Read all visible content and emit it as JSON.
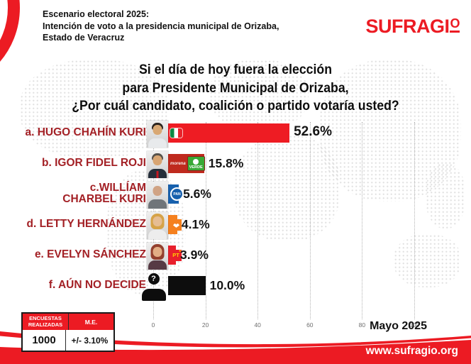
{
  "header": {
    "kicker_lines": [
      "Escenario electoral 2025:",
      "Intención de voto a la presidencia municipal de Orizaba,",
      "Estado de Veracruz"
    ],
    "brand": {
      "name": "SUFRAGIO",
      "main": "SUFRAGI",
      "o": "O"
    }
  },
  "title_lines": [
    "Si el día de hoy fuera la elección",
    "para Presidente Municipal de Orizaba,",
    "¿Por cuál candidato, coalición o partido votaría usted?"
  ],
  "chart_data": {
    "type": "bar",
    "orientation": "horizontal",
    "title": "Si el día de hoy fuera la elección para Presidente Municipal de Orizaba, ¿Por cuál candidato, coalición o partido votaría usted?",
    "unit": "%",
    "xlim": [
      0,
      100
    ],
    "axis_ticks": [
      0,
      20,
      40,
      60,
      80,
      100
    ],
    "grid": "dotted-vertical",
    "categories": [
      "a. HUGO CHAHÍN KURI",
      "b. IGOR FIDEL ROJI",
      "c.WILLÍAM CHARBEL KURI",
      "d. LETTY HERNÁNDEZ",
      "e. EVELYN SÁNCHEZ",
      "f. AÚN NO DECIDE"
    ],
    "values": [
      52.6,
      15.8,
      5.6,
      4.1,
      3.9,
      10.0
    ],
    "rows": [
      {
        "id": "a",
        "label_lines": [
          "a. HUGO CHAHÍN KURI"
        ],
        "value": 52.6,
        "value_label": "52.6%",
        "bar_color": "#ee1c23",
        "bar_display_pct": 52.2,
        "photo": "man-dark-hair",
        "logos": [
          {
            "name": "pri-logo",
            "text": ""
          }
        ]
      },
      {
        "id": "b",
        "label_lines": [
          "b. IGOR FIDEL ROJI"
        ],
        "value": 15.8,
        "value_label": "15.8%",
        "bar_color": "#bf2a1e",
        "bar_display_pct": 19.5,
        "photo": "man-suit-red-tie",
        "logos": [
          {
            "name": "morena-wordmark",
            "text": "morena"
          },
          {
            "name": "verde-logo",
            "text": "VERDE"
          }
        ]
      },
      {
        "id": "c",
        "label_lines": [
          "c.WILLÍAM",
          "CHARBEL KURI"
        ],
        "value": 5.6,
        "value_label": "5.6%",
        "bar_color": "#1760ad",
        "bar_display_pct": 9.8,
        "photo": "bald-man-suit",
        "logos": [
          {
            "name": "pan-logo",
            "text": "PAN"
          }
        ]
      },
      {
        "id": "d",
        "label_lines": [
          "d. LETTY HERNÁNDEZ"
        ],
        "value": 4.1,
        "value_label": "4.1%",
        "bar_color": "#f5801e",
        "bar_display_pct": 9.2,
        "photo": "blonde-woman",
        "logos": [
          {
            "name": "mc-logo",
            "text": ""
          }
        ]
      },
      {
        "id": "e",
        "label_lines": [
          "e. EVELYN SÁNCHEZ"
        ],
        "value": 3.9,
        "value_label": "3.9%",
        "bar_color": "#e8202c",
        "bar_display_pct": 8.7,
        "photo": "auburn-hair-woman",
        "logos": [
          {
            "name": "pt-logo",
            "text": "PT"
          }
        ]
      },
      {
        "id": "f",
        "label_lines": [
          "f. AÚN NO DECIDE"
        ],
        "value": 10.0,
        "value_label": "10.0%",
        "bar_color": "#0d0d0d",
        "bar_display_pct": 20.0,
        "photo": "silhouette-question",
        "photo_glyph": "?",
        "logos": []
      }
    ]
  },
  "stats_table": {
    "headers": [
      "ENCUESTAS REALIZADAS",
      "M.E."
    ],
    "values": [
      "1000",
      "+/- 3.10%"
    ]
  },
  "date_label": "Mayo 2025",
  "footer": {
    "url": "www.sufragio.org"
  },
  "colors": {
    "brand_red": "#ec1b23",
    "label_red": "#a32025",
    "morena_red": "#bf2a1e",
    "pan_blue": "#1760ad",
    "mc_orange": "#f5801e",
    "pt_red": "#e8202c",
    "undecided_black": "#0d0d0d",
    "axis_gray": "#6f6f6f"
  }
}
